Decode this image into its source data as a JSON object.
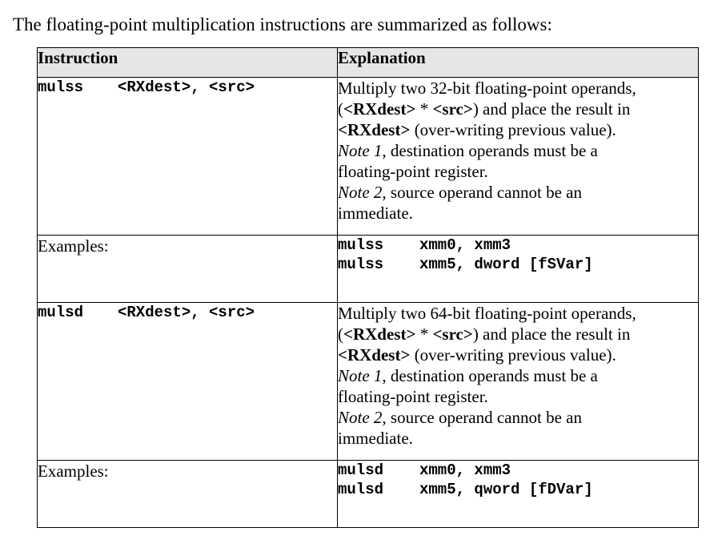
{
  "intro": "The floating-point multiplication instructions are summarized as follows:",
  "headers": {
    "instruction": "Instruction",
    "explanation": "Explanation"
  },
  "rows": [
    {
      "mnemonic": "mulss",
      "operands": "<RXdest>, <src>",
      "explanation": {
        "line1": "Multiply two 32-bit floating-point operands,",
        "paren_open": "(",
        "dest": "<RXdest>",
        "star": " * ",
        "src": "<src>",
        "paren_close_rest": ") and place the result in",
        "dest2": "<RXdest>",
        "overwrite": " (over-writing previous value).",
        "note1_label": "Note 1",
        "note1_text": ", destination operands must be a",
        "note1_text2": "floating-point register.",
        "note2_label": "Note 2",
        "note2_text": ", source operand cannot be an",
        "note2_text2": "immediate."
      },
      "examples_label": "Examples:",
      "examples": [
        {
          "mnemonic": "mulss",
          "operands": "xmm0, xmm3"
        },
        {
          "mnemonic": "mulss",
          "operands": "xmm5, dword [fSVar]"
        }
      ]
    },
    {
      "mnemonic": "mulsd",
      "operands": "<RXdest>, <src>",
      "explanation": {
        "line1": "Multiply two 64-bit floating-point operands,",
        "paren_open": "(",
        "dest": "<RXdest>",
        "star": " * ",
        "src": "<src>",
        "paren_close_rest": ") and place the result in",
        "dest2": "<RXdest>",
        "overwrite": " (over-writing previous value).",
        "note1_label": "Note 1",
        "note1_text": ", destination operands must be a",
        "note1_text2": "floating-point register.",
        "note2_label": "Note 2",
        "note2_text": ", source operand cannot be an",
        "note2_text2": "immediate."
      },
      "examples_label": "Examples:",
      "examples": [
        {
          "mnemonic": "mulsd",
          "operands": "xmm0, xmm3"
        },
        {
          "mnemonic": "mulsd",
          "operands": "xmm5, qword [fDVar]"
        }
      ]
    }
  ]
}
